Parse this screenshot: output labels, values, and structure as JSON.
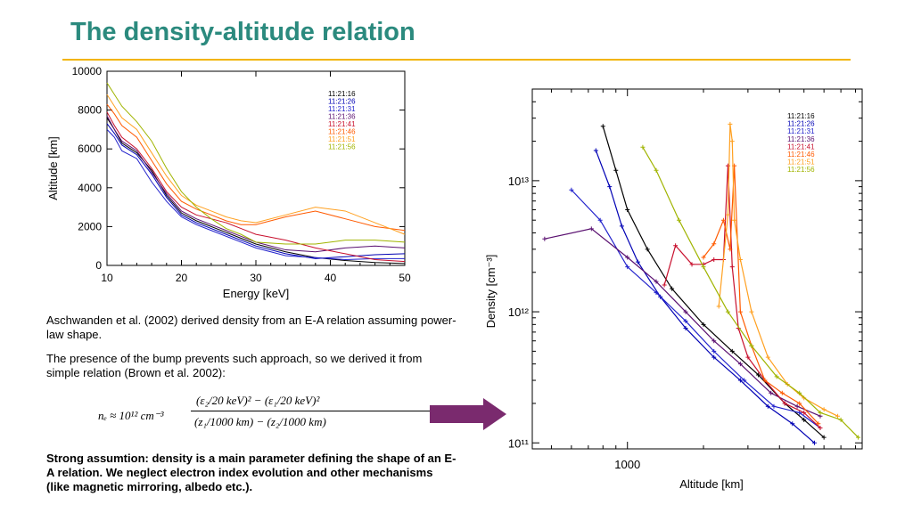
{
  "slide": {
    "title": "The density-altitude relation",
    "paragraph1": "Aschwanden et al. (2002) derived density from an E-A relation assuming power-law shape.",
    "paragraph2": "The presence of the bump prevents such approach, so we derived it from simple relation (Brown et al. 2002):",
    "formula": {
      "lhs": "nₑ ≈ 10¹² cm⁻³",
      "numerator": "(ε₂/20 keV)² − (ε₁/20 keV)²",
      "denominator": "(z₁/1000 km) − (z₂/1000 km)"
    },
    "conclusion": "Strong assumtion: density is a main parameter defining the shape of an E-A relation. We neglect electron index evolution and other mechanisms (like magnetic mirroring, albedo etc.).",
    "colors": {
      "title": "#2b8a7e",
      "rule": "#f2b400",
      "arrow": "#7a2a6e"
    }
  },
  "chart_data": [
    {
      "type": "line",
      "title": "",
      "xlabel": "Energy [keV]",
      "ylabel": "Altitude [km]",
      "xlim": [
        10,
        50
      ],
      "ylim": [
        0,
        10000
      ],
      "xticks": [
        "10",
        "20",
        "30",
        "40",
        "50"
      ],
      "yticks": [
        "0",
        "2000",
        "4000",
        "6000",
        "8000",
        "10000"
      ],
      "x": [
        10,
        11,
        12,
        14,
        16,
        18,
        20,
        22,
        24,
        26,
        28,
        30,
        34,
        38,
        42,
        46,
        50
      ],
      "series": [
        {
          "name": "11:21:16",
          "color": "#000000",
          "values": [
            7600,
            7000,
            6300,
            5800,
            4900,
            3600,
            2700,
            2300,
            2000,
            1700,
            1400,
            1100,
            700,
            400,
            250,
            150,
            100
          ]
        },
        {
          "name": "11:21:26",
          "color": "#0000b4",
          "values": [
            7300,
            6800,
            6200,
            5700,
            4700,
            3500,
            2600,
            2200,
            1900,
            1600,
            1300,
            1000,
            600,
            350,
            450,
            550,
            600
          ]
        },
        {
          "name": "11:21:31",
          "color": "#2222cc",
          "values": [
            7000,
            6600,
            5900,
            5500,
            4300,
            3300,
            2500,
            2100,
            1800,
            1500,
            1200,
            900,
            500,
            400,
            300,
            350,
            350
          ]
        },
        {
          "name": "11:21:36",
          "color": "#5a1070",
          "values": [
            7700,
            7000,
            6400,
            5900,
            4800,
            3700,
            2800,
            2400,
            2100,
            1800,
            1500,
            1200,
            800,
            700,
            900,
            1000,
            900
          ]
        },
        {
          "name": "11:21:41",
          "color": "#c8102e",
          "values": [
            7900,
            7200,
            6600,
            6000,
            5000,
            3800,
            3000,
            2600,
            2400,
            2200,
            1900,
            1600,
            1300,
            900,
            600,
            300,
            200
          ]
        },
        {
          "name": "11:21:46",
          "color": "#ff5a00",
          "values": [
            8300,
            7800,
            7200,
            6600,
            5400,
            4200,
            3300,
            2900,
            2600,
            2300,
            2100,
            2100,
            2500,
            2800,
            2400,
            2000,
            1800
          ]
        },
        {
          "name": "11:21:51",
          "color": "#ffa020",
          "values": [
            8800,
            8200,
            7600,
            7000,
            5800,
            4600,
            3600,
            3100,
            2800,
            2500,
            2300,
            2200,
            2600,
            3000,
            2800,
            2200,
            1600
          ]
        },
        {
          "name": "11:21:56",
          "color": "#a0b400",
          "values": [
            9400,
            8800,
            8200,
            7400,
            6400,
            5000,
            3800,
            3000,
            2400,
            1900,
            1600,
            1200,
            1100,
            1100,
            1300,
            1300,
            1200
          ]
        }
      ]
    },
    {
      "type": "line",
      "title": "",
      "xlabel": "Altitude [km]",
      "ylabel": "Density [cm⁻³]",
      "xscale": "log",
      "yscale": "log",
      "xlim": [
        420,
        8500
      ],
      "ylim": [
        90000000000.0,
        50000000000000.0
      ],
      "xticks": [
        "1000"
      ],
      "yticks": [
        "10¹¹",
        "10¹²",
        "10¹³"
      ],
      "series": [
        {
          "name": "11:21:16",
          "color": "#000000",
          "x": [
            800,
            900,
            1000,
            1200,
            1500,
            2000,
            2600,
            3300,
            4200,
            5000,
            6000
          ],
          "y": [
            26000000000000.0,
            12000000000000.0,
            6000000000000.0,
            3000000000000.0,
            1500000000000.0,
            800000000000.0,
            500000000000.0,
            330000000000.0,
            200000000000.0,
            150000000000.0,
            110000000000.0
          ]
        },
        {
          "name": "11:21:26",
          "color": "#0000b4",
          "x": [
            750,
            850,
            950,
            1100,
            1350,
            1700,
            2200,
            2800,
            3600,
            4500,
            5500
          ],
          "y": [
            17000000000000.0,
            9000000000000.0,
            4500000000000.0,
            2400000000000.0,
            1300000000000.0,
            750000000000.0,
            450000000000.0,
            300000000000.0,
            190000000000.0,
            140000000000.0,
            100000000000.0
          ]
        },
        {
          "name": "11:21:31",
          "color": "#2222cc",
          "x": [
            600,
            780,
            1000,
            1300,
            1700,
            2200,
            2900,
            3800,
            4800,
            5800
          ],
          "y": [
            8500000000000.0,
            5000000000000.0,
            2200000000000.0,
            1400000000000.0,
            850000000000.0,
            500000000000.0,
            300000000000.0,
            190000000000.0,
            170000000000.0,
            130000000000.0
          ]
        },
        {
          "name": "11:21:36",
          "color": "#5a1070",
          "x": [
            470,
            720,
            1000,
            1300,
            1700,
            2200,
            2800,
            3700,
            4700,
            5800
          ],
          "y": [
            3600000000000.0,
            4300000000000.0,
            2600000000000.0,
            1700000000000.0,
            1000000000000.0,
            600000000000.0,
            400000000000.0,
            240000000000.0,
            190000000000.0,
            160000000000.0
          ]
        },
        {
          "name": "11:21:41",
          "color": "#c8102e",
          "x": [
            1400,
            1550,
            1800,
            2000,
            2200,
            2400,
            2500,
            2600,
            2750,
            3000,
            3500,
            4200,
            5000,
            5800
          ],
          "y": [
            1600000000000.0,
            3200000000000.0,
            2300000000000.0,
            2300000000000.0,
            2500000000000.0,
            2500000000000.0,
            13000000000000.0,
            2200000000000.0,
            750000000000.0,
            450000000000.0,
            300000000000.0,
            200000000000.0,
            170000000000.0,
            130000000000.0
          ]
        },
        {
          "name": "11:21:46",
          "color": "#ff5a00",
          "x": [
            2000,
            2200,
            2400,
            2550,
            2650,
            2800,
            3100,
            3500,
            4100,
            4800,
            5700
          ],
          "y": [
            2600000000000.0,
            3300000000000.0,
            5000000000000.0,
            3000000000000.0,
            13000000000000.0,
            1000000000000.0,
            550000000000.0,
            300000000000.0,
            240000000000.0,
            200000000000.0,
            140000000000.0
          ]
        },
        {
          "name": "11:21:51",
          "color": "#ffa020",
          "x": [
            2300,
            2500,
            2550,
            2600,
            2650,
            2800,
            3100,
            3600,
            4300,
            5000,
            6000,
            6800
          ],
          "y": [
            1100000000000.0,
            5500000000000.0,
            27000000000000.0,
            20000000000000.0,
            5000000000000.0,
            2500000000000.0,
            1000000000000.0,
            450000000000.0,
            280000000000.0,
            220000000000.0,
            180000000000.0,
            160000000000.0
          ]
        },
        {
          "name": "11:21:56",
          "color": "#a0b400",
          "x": [
            1150,
            1300,
            1600,
            2000,
            2500,
            3100,
            3900,
            4800,
            5800,
            7000,
            8200
          ],
          "y": [
            18000000000000.0,
            12000000000000.0,
            5000000000000.0,
            2200000000000.0,
            1000000000000.0,
            550000000000.0,
            320000000000.0,
            240000000000.0,
            170000000000.0,
            150000000000.0,
            110000000000.0
          ]
        }
      ]
    }
  ]
}
